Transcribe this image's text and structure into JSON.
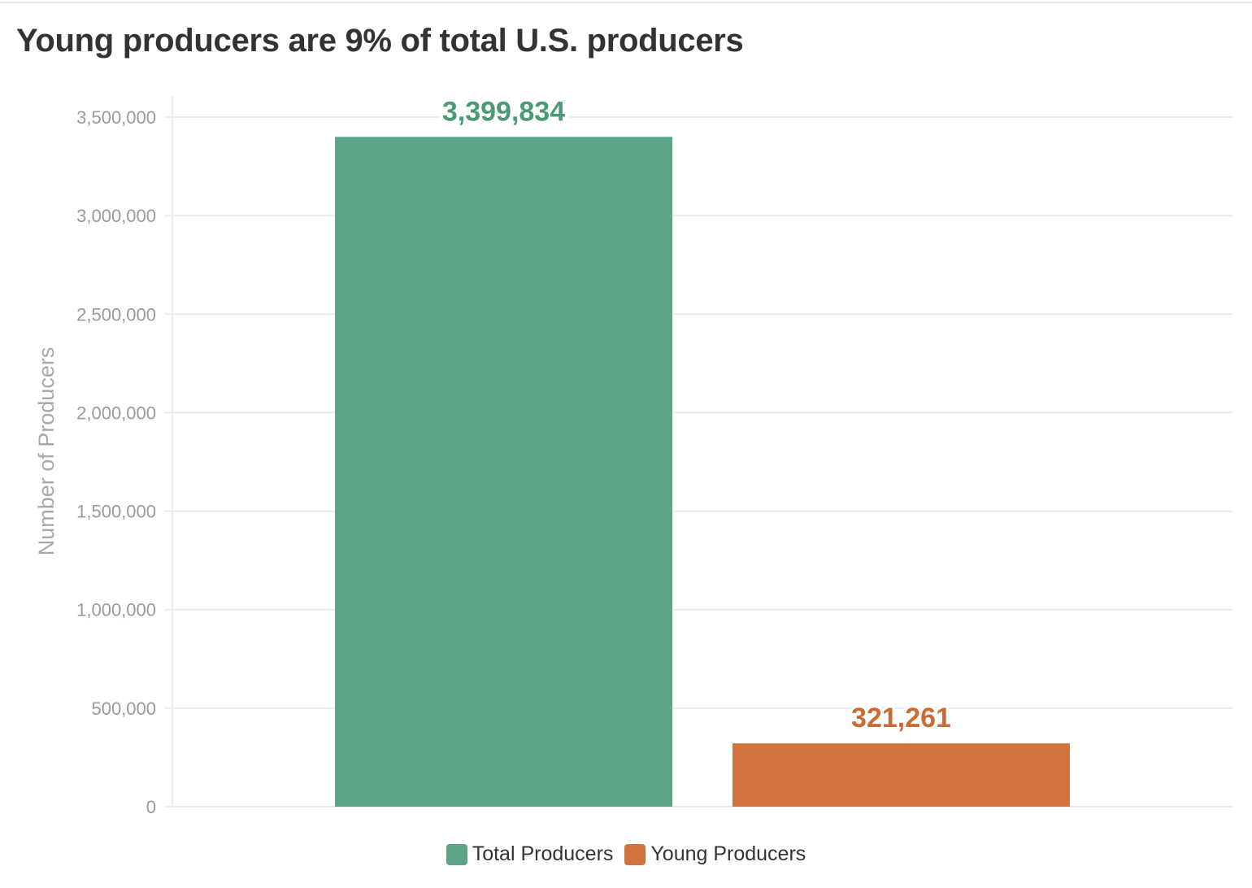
{
  "title": "Young producers are 9% of total U.S. producers",
  "colors": {
    "total": "#5ba586",
    "young": "#d1733e",
    "total_label": "#4a9a78",
    "young_label": "#cc6a33",
    "grid": "#ebebeb",
    "axis_text": "#9a9a9a"
  },
  "chart_data": {
    "type": "bar",
    "categories": [
      "Total Producers",
      "Young Producers"
    ],
    "values": [
      3399834,
      321261
    ],
    "value_labels": [
      "3,399,834",
      "321,261"
    ],
    "title": "Young producers are 9% of total U.S. producers",
    "xlabel": "",
    "ylabel": "Number of Producers",
    "ylim": [
      0,
      3500000
    ],
    "yticks": [
      0,
      500000,
      1000000,
      1500000,
      2000000,
      2500000,
      3000000,
      3500000
    ],
    "ytick_labels": [
      "0",
      "500,000",
      "1,000,000",
      "1,500,000",
      "2,000,000",
      "2,500,000",
      "3,000,000",
      "3,500,000"
    ],
    "grid": true,
    "legend": {
      "position": "bottom-center",
      "entries": [
        "Total Producers",
        "Young Producers"
      ]
    }
  }
}
